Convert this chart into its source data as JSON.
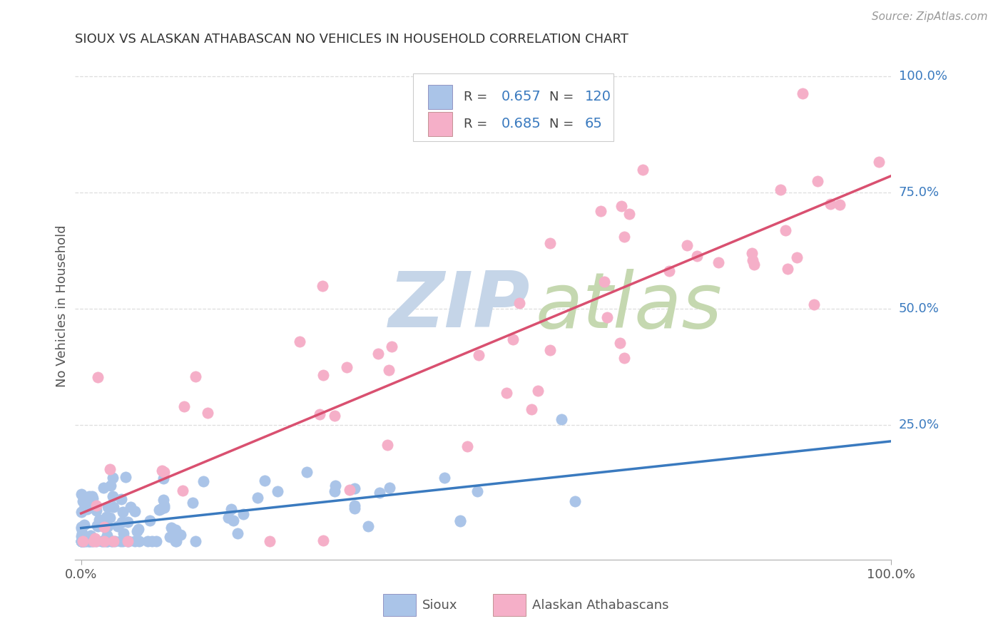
{
  "title": "SIOUX VS ALASKAN ATHABASCAN NO VEHICLES IN HOUSEHOLD CORRELATION CHART",
  "source": "Source: ZipAtlas.com",
  "ylabel": "No Vehicles in Household",
  "sioux_R": 0.657,
  "sioux_N": 120,
  "athabascan_R": 0.685,
  "athabascan_N": 65,
  "sioux_color": "#aac4e8",
  "athabascan_color": "#f5afc8",
  "sioux_line_color": "#3a7abf",
  "athabascan_line_color": "#d95070",
  "watermark_ZIP_color": "#c5d5e8",
  "watermark_atlas_color": "#c5d8b0",
  "background_color": "#ffffff",
  "grid_color": "#dddddd",
  "right_label_color": "#3a7abf",
  "title_color": "#333333",
  "legend_color": "#3a7abf",
  "legend_green": "#22aa44",
  "source_color": "#999999"
}
